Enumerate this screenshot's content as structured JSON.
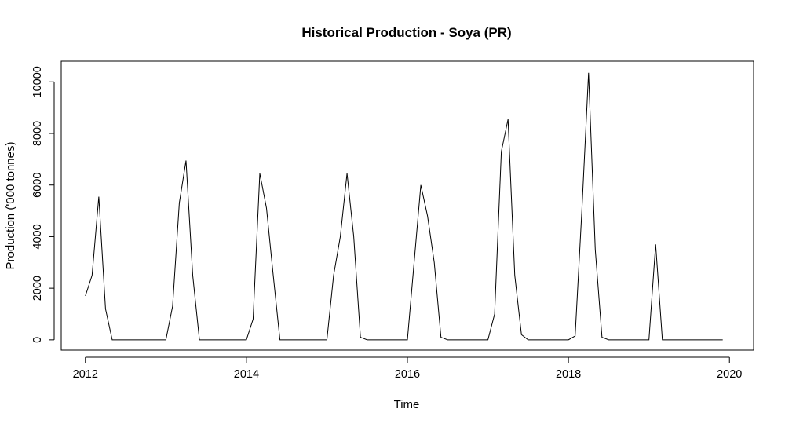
{
  "chart_data": {
    "type": "line",
    "title": "Historical Production - Soya (PR)",
    "xlabel": "Time",
    "ylabel": "Production ('000 tonnes)",
    "xlim": [
      2011.7,
      2020.3
    ],
    "ylim": [
      -400,
      10800
    ],
    "xticks": [
      2012,
      2014,
      2016,
      2018,
      2020
    ],
    "xtick_labels": [
      "2012",
      "2014",
      "2016",
      "2018",
      "2020"
    ],
    "yticks": [
      0,
      2000,
      4000,
      6000,
      8000,
      10000
    ],
    "ytick_labels": [
      "0",
      "2000",
      "4000",
      "6000",
      "8000",
      "10000"
    ],
    "grid": false,
    "legend": "none",
    "line_color": "#000000",
    "series": [
      {
        "x_start": 2012,
        "frequency": 12,
        "values": [
          1700,
          2500,
          5550,
          1200,
          0,
          0,
          0,
          0,
          0,
          0,
          0,
          0,
          0,
          1300,
          5300,
          6950,
          2500,
          0,
          0,
          0,
          0,
          0,
          0,
          0,
          0,
          800,
          6450,
          5100,
          2500,
          0,
          0,
          0,
          0,
          0,
          0,
          0,
          0,
          2500,
          4000,
          6450,
          4000,
          100,
          0,
          0,
          0,
          0,
          0,
          0,
          0,
          3000,
          6000,
          4800,
          3000,
          100,
          0,
          0,
          0,
          0,
          0,
          0,
          0,
          1000,
          7300,
          8550,
          2500,
          200,
          0,
          0,
          0,
          0,
          0,
          0,
          0,
          150,
          5000,
          10350,
          3500,
          100,
          0,
          0,
          0,
          0,
          0,
          0,
          0,
          3700,
          0,
          0,
          0,
          0,
          0,
          0,
          0,
          0,
          0,
          0
        ]
      }
    ]
  }
}
